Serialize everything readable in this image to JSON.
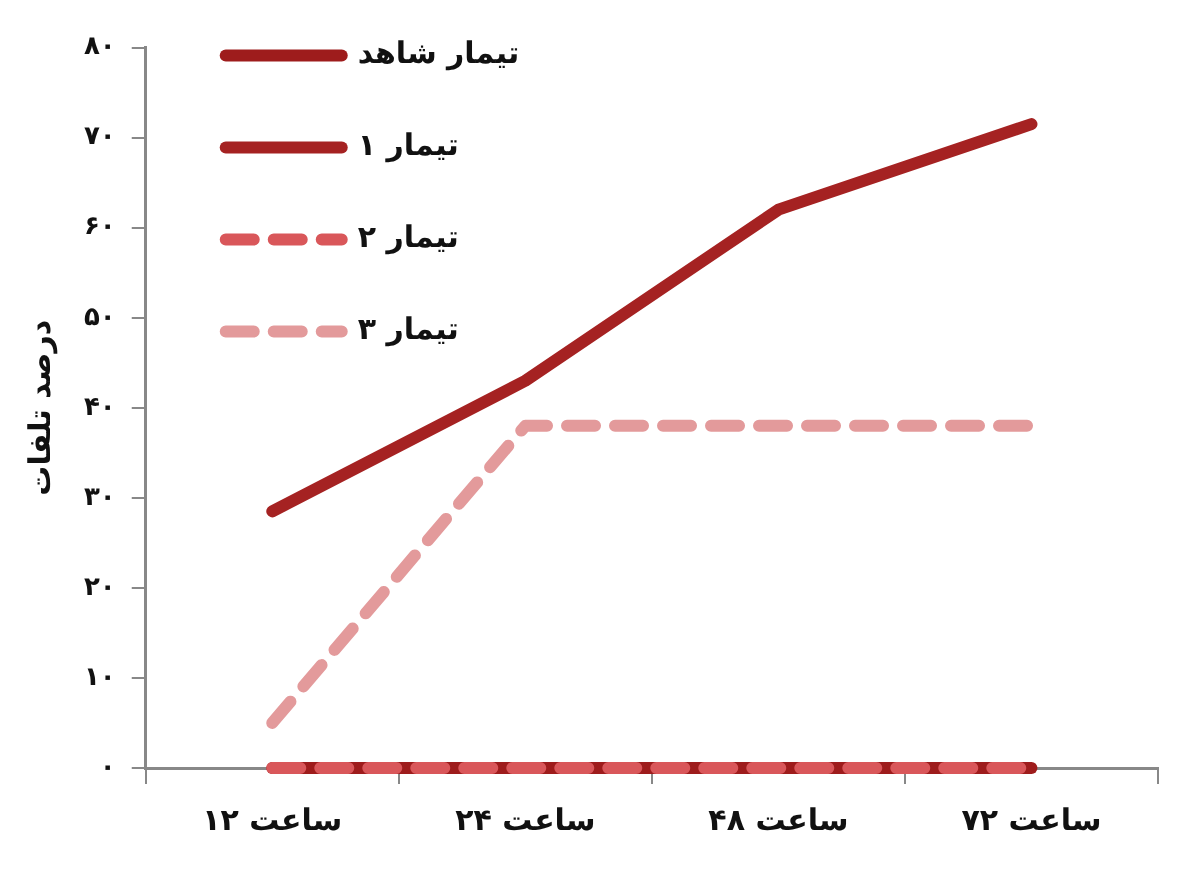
{
  "chart_data": {
    "type": "line",
    "ylabel": "درصد تلفات",
    "categories": [
      "۱۲ ساعت",
      "۲۴ ساعت",
      "۴۸ ساعت",
      "۷۲ ساعت"
    ],
    "series": [
      {
        "name": "تیمار شاهد",
        "color": "#9e1c1c",
        "values": [
          0,
          0,
          0,
          0
        ],
        "line_style": "solid"
      },
      {
        "name": "تیمار ۱",
        "color": "#a52222",
        "values": [
          28.5,
          43,
          62,
          71.5
        ],
        "line_style": "solid"
      },
      {
        "name": "تیمار ۲",
        "color": "#d9575a",
        "values": [
          0,
          0,
          0,
          0
        ],
        "line_style": "dashed"
      },
      {
        "name": "تیمار ۳",
        "color": "#e39a9b",
        "values": [
          5,
          38,
          38,
          38
        ],
        "line_style": "dashed"
      }
    ],
    "ylim": [
      0,
      80
    ],
    "yticks": [
      {
        "value": 0,
        "label": "۰"
      },
      {
        "value": 10,
        "label": "۱۰"
      },
      {
        "value": 20,
        "label": "۲۰"
      },
      {
        "value": 30,
        "label": "۳۰"
      },
      {
        "value": 40,
        "label": "۴۰"
      },
      {
        "value": 50,
        "label": "۵۰"
      },
      {
        "value": 60,
        "label": "۶۰"
      },
      {
        "value": 70,
        "label": "۷۰"
      },
      {
        "value": 80,
        "label": "۸۰"
      }
    ],
    "grid": false,
    "legend": "top left",
    "marker": "none"
  }
}
